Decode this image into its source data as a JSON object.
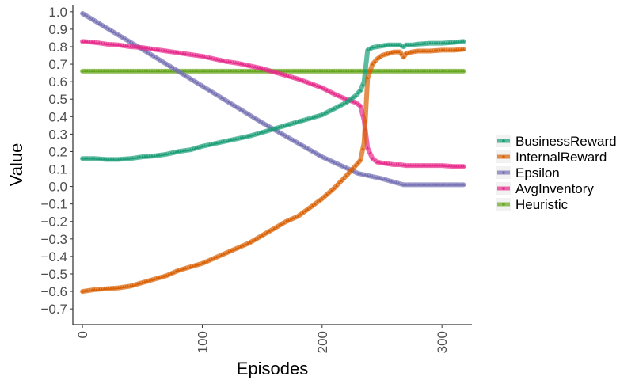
{
  "chart_data": {
    "type": "line",
    "xlabel": "Episodes",
    "ylabel": "Value",
    "xlim": [
      -8,
      325
    ],
    "ylim": [
      -0.79,
      1.04
    ],
    "x_ticks": [
      0,
      100,
      200,
      300
    ],
    "y_ticks": [
      1.0,
      0.9,
      0.8,
      0.7,
      0.6,
      0.5,
      0.4,
      0.3,
      0.2,
      0.1,
      0.0,
      -0.1,
      -0.2,
      -0.3,
      -0.4,
      -0.5,
      -0.6,
      -0.7
    ],
    "y_tick_labels": [
      "1.0",
      "0.9",
      "0.8",
      "0.7",
      "0.6",
      "0.5",
      "0.4",
      "0.3",
      "0.2",
      "0.1",
      "0.0",
      "−0.1",
      "−0.2",
      "−0.3",
      "−0.4",
      "−0.5",
      "−0.6",
      "−0.7"
    ],
    "grid": false,
    "legend_position": "right",
    "series": [
      {
        "name": "BusinessReward",
        "color": "#1b9e77",
        "x": [
          0,
          10,
          20,
          30,
          40,
          50,
          60,
          70,
          80,
          90,
          100,
          110,
          120,
          130,
          140,
          150,
          160,
          170,
          180,
          190,
          200,
          210,
          220,
          228,
          232,
          235,
          238,
          242,
          246,
          250,
          255,
          260,
          265,
          268,
          270,
          275,
          280,
          290,
          300,
          310,
          318
        ],
        "y": [
          0.16,
          0.16,
          0.155,
          0.155,
          0.16,
          0.17,
          0.175,
          0.185,
          0.2,
          0.21,
          0.23,
          0.245,
          0.26,
          0.275,
          0.29,
          0.31,
          0.33,
          0.35,
          0.37,
          0.39,
          0.41,
          0.445,
          0.48,
          0.52,
          0.55,
          0.6,
          0.78,
          0.795,
          0.8,
          0.805,
          0.81,
          0.81,
          0.81,
          0.8,
          0.81,
          0.81,
          0.815,
          0.82,
          0.82,
          0.825,
          0.83
        ]
      },
      {
        "name": "InternalReward",
        "color": "#d95f02",
        "x": [
          0,
          10,
          20,
          30,
          40,
          50,
          60,
          70,
          80,
          90,
          100,
          110,
          120,
          130,
          140,
          150,
          160,
          170,
          180,
          190,
          200,
          210,
          220,
          228,
          232,
          235,
          238,
          242,
          246,
          250,
          255,
          260,
          265,
          268,
          270,
          275,
          280,
          290,
          300,
          310,
          318
        ],
        "y": [
          -0.6,
          -0.59,
          -0.585,
          -0.58,
          -0.57,
          -0.55,
          -0.53,
          -0.51,
          -0.48,
          -0.46,
          -0.44,
          -0.41,
          -0.38,
          -0.35,
          -0.32,
          -0.28,
          -0.24,
          -0.2,
          -0.17,
          -0.12,
          -0.07,
          -0.01,
          0.06,
          0.12,
          0.15,
          0.25,
          0.62,
          0.7,
          0.73,
          0.75,
          0.76,
          0.77,
          0.77,
          0.74,
          0.76,
          0.77,
          0.775,
          0.775,
          0.78,
          0.78,
          0.785
        ]
      },
      {
        "name": "Epsilon",
        "color": "#7570b3",
        "x": [
          0,
          50,
          100,
          150,
          200,
          230,
          250,
          268,
          300,
          318
        ],
        "y": [
          0.99,
          0.785,
          0.575,
          0.365,
          0.17,
          0.075,
          0.045,
          0.01,
          0.01,
          0.01
        ]
      },
      {
        "name": "AvgInventory",
        "color": "#e7298a",
        "x": [
          0,
          10,
          20,
          30,
          40,
          50,
          60,
          70,
          80,
          90,
          100,
          110,
          120,
          130,
          140,
          150,
          160,
          170,
          180,
          190,
          200,
          210,
          220,
          228,
          232,
          235,
          238,
          242,
          246,
          250,
          255,
          260,
          265,
          270,
          280,
          290,
          300,
          310,
          318
        ],
        "y": [
          0.83,
          0.825,
          0.815,
          0.81,
          0.8,
          0.795,
          0.785,
          0.775,
          0.765,
          0.755,
          0.745,
          0.73,
          0.715,
          0.705,
          0.69,
          0.675,
          0.655,
          0.635,
          0.615,
          0.59,
          0.565,
          0.53,
          0.5,
          0.48,
          0.46,
          0.38,
          0.22,
          0.16,
          0.14,
          0.135,
          0.13,
          0.125,
          0.125,
          0.12,
          0.12,
          0.12,
          0.12,
          0.115,
          0.115
        ]
      },
      {
        "name": "Heuristic",
        "color": "#66a61e",
        "x": [
          0,
          318
        ],
        "y": [
          0.66,
          0.66
        ]
      }
    ]
  }
}
